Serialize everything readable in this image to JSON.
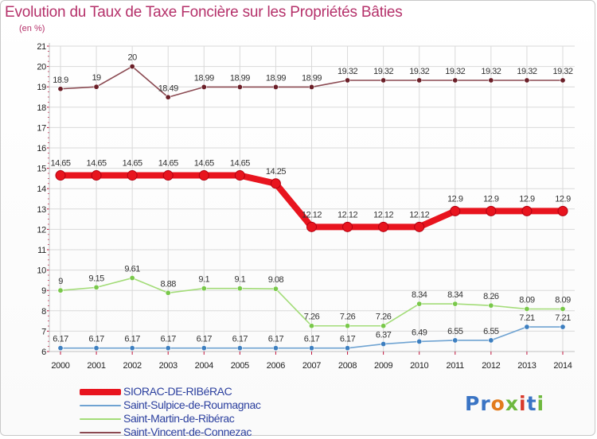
{
  "title": "Evolution du Taux de Taxe Foncière sur les Propriétés Bâties",
  "subtitle": "(en %)",
  "logo": "Proxiti",
  "colors": {
    "title": "#b5316a",
    "legend_text": "#2b3f9e",
    "grid": "#d9d9d9",
    "axis": "#c0c0c0",
    "tick_mark": "#c0143c"
  },
  "chart_data": {
    "type": "line",
    "title": "Evolution du Taux de Taxe Foncière sur les Propriétés Bâties",
    "ylabel": "(en %)",
    "xlabel": "",
    "ylim": [
      6,
      21
    ],
    "yticks": [
      "6",
      "7",
      "8",
      "9",
      "10",
      "11",
      "12",
      "13",
      "14",
      "15",
      "16",
      "17",
      "18",
      "19",
      "20",
      "21"
    ],
    "x": [
      "2000",
      "2001",
      "2002",
      "2003",
      "2004",
      "2005",
      "2006",
      "2007",
      "2008",
      "2009",
      "2010",
      "2011",
      "2012",
      "2013",
      "2014"
    ],
    "grid": true,
    "legend_position": "bottom-left",
    "series": [
      {
        "name": "SIORAC-DE-RIBéRAC",
        "color": "#e8141e",
        "point_color": "#e8141e",
        "width": "thick",
        "values": [
          14.65,
          14.65,
          14.65,
          14.65,
          14.65,
          14.65,
          14.25,
          12.12,
          12.12,
          12.12,
          12.12,
          12.9,
          12.9,
          12.9,
          12.9
        ],
        "labels": [
          "14.65",
          "14.65",
          "14.65",
          "14.65",
          "14.65",
          "14.65",
          "14.25",
          "12.12",
          "12.12",
          "12.12",
          "12.12",
          "12.9",
          "12.9",
          "12.9",
          "12.9"
        ]
      },
      {
        "name": "Saint-Sulpice-de-Roumagnac",
        "color": "#6fa3d2",
        "point_color": "#3d7fc0",
        "width": "thin",
        "values": [
          6.17,
          6.17,
          6.17,
          6.17,
          6.17,
          6.17,
          6.17,
          6.17,
          6.17,
          6.37,
          6.49,
          6.55,
          6.55,
          7.21,
          7.21
        ],
        "labels": [
          "6.17",
          "6.17",
          "6.17",
          "6.17",
          "6.17",
          "6.17",
          "6.17",
          "6.17",
          "6.17",
          "6.37",
          "6.49",
          "6.55",
          "6.55",
          "7.21",
          "7.21"
        ]
      },
      {
        "name": "Saint-Martin-de-Ribérac",
        "color": "#a3dc78",
        "point_color": "#79c84a",
        "width": "thin",
        "values": [
          9,
          9.15,
          9.61,
          8.88,
          9.1,
          9.1,
          9.08,
          7.26,
          7.26,
          7.26,
          8.34,
          8.34,
          8.26,
          8.09,
          8.09
        ],
        "labels": [
          "9",
          "9.15",
          "9.61",
          "8.88",
          "9.1",
          "9.1",
          "9.08",
          "7.26",
          "7.26",
          "7.26",
          "8.34",
          "8.34",
          "8.26",
          "8.09",
          "8.09"
        ]
      },
      {
        "name": "Saint-Vincent-de-Connezac",
        "color": "#8b4a52",
        "point_color": "#6b1f28",
        "width": "thin",
        "values": [
          18.9,
          19,
          20,
          18.49,
          18.99,
          18.99,
          18.99,
          18.99,
          19.32,
          19.32,
          19.32,
          19.32,
          19.32,
          19.32,
          19.32
        ],
        "labels": [
          "18.9",
          "19",
          "20",
          "18.49",
          "18.99",
          "18.99",
          "18.99",
          "18.99",
          "19.32",
          "19.32",
          "19.32",
          "19.32",
          "19.32",
          "19.32",
          "19.32"
        ]
      }
    ]
  }
}
